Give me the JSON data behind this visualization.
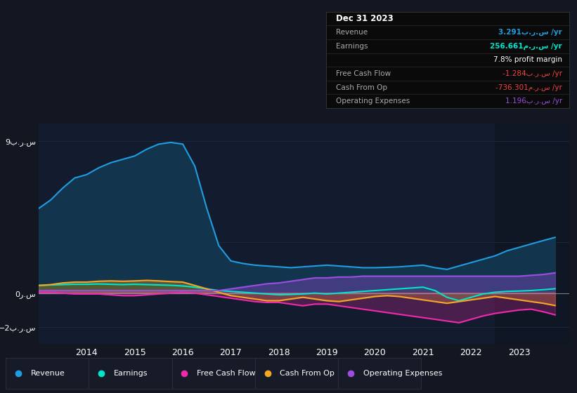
{
  "background_color": "#131722",
  "plot_bg_color": "#131c2e",
  "grid_color": "#1e2a3a",
  "zero_line_color": "#888888",
  "ylim": [
    -3.0,
    10.0
  ],
  "years": [
    2013.0,
    2013.25,
    2013.5,
    2013.75,
    2014.0,
    2014.25,
    2014.5,
    2014.75,
    2015.0,
    2015.25,
    2015.5,
    2015.75,
    2016.0,
    2016.25,
    2016.5,
    2016.75,
    2017.0,
    2017.25,
    2017.5,
    2017.75,
    2018.0,
    2018.25,
    2018.5,
    2018.75,
    2019.0,
    2019.25,
    2019.5,
    2019.75,
    2020.0,
    2020.25,
    2020.5,
    2020.75,
    2021.0,
    2021.25,
    2021.5,
    2021.75,
    2022.0,
    2022.25,
    2022.5,
    2022.75,
    2023.0,
    2023.25,
    2023.5,
    2023.75
  ],
  "revenue": [
    5.0,
    5.5,
    6.2,
    6.8,
    7.0,
    7.4,
    7.7,
    7.9,
    8.1,
    8.5,
    8.8,
    8.9,
    8.8,
    7.5,
    5.0,
    2.8,
    1.9,
    1.75,
    1.65,
    1.6,
    1.55,
    1.5,
    1.55,
    1.6,
    1.65,
    1.6,
    1.55,
    1.5,
    1.5,
    1.52,
    1.55,
    1.6,
    1.65,
    1.5,
    1.4,
    1.6,
    1.8,
    2.0,
    2.2,
    2.5,
    2.7,
    2.9,
    3.1,
    3.291
  ],
  "earnings": [
    0.45,
    0.48,
    0.5,
    0.52,
    0.52,
    0.54,
    0.52,
    0.5,
    0.52,
    0.5,
    0.48,
    0.46,
    0.42,
    0.35,
    0.25,
    0.15,
    0.1,
    0.05,
    0.0,
    -0.05,
    -0.1,
    -0.08,
    -0.05,
    0.0,
    -0.05,
    0.0,
    0.05,
    0.1,
    0.15,
    0.2,
    0.25,
    0.3,
    0.35,
    0.15,
    -0.25,
    -0.45,
    -0.25,
    -0.05,
    0.05,
    0.1,
    0.12,
    0.15,
    0.2,
    0.257
  ],
  "free_cash_flow": [
    0.05,
    0.05,
    0.0,
    -0.05,
    -0.05,
    -0.05,
    -0.1,
    -0.15,
    -0.15,
    -0.1,
    -0.05,
    0.0,
    0.05,
    0.0,
    -0.1,
    -0.2,
    -0.3,
    -0.4,
    -0.5,
    -0.55,
    -0.55,
    -0.65,
    -0.75,
    -0.65,
    -0.65,
    -0.75,
    -0.85,
    -0.95,
    -1.05,
    -1.15,
    -1.25,
    -1.35,
    -1.45,
    -1.55,
    -1.65,
    -1.75,
    -1.55,
    -1.35,
    -1.2,
    -1.1,
    -1.0,
    -0.95,
    -1.1,
    -1.284
  ],
  "cash_from_op": [
    0.45,
    0.5,
    0.6,
    0.65,
    0.65,
    0.7,
    0.72,
    0.7,
    0.72,
    0.75,
    0.72,
    0.68,
    0.65,
    0.45,
    0.25,
    0.05,
    -0.15,
    -0.25,
    -0.35,
    -0.45,
    -0.45,
    -0.35,
    -0.25,
    -0.35,
    -0.45,
    -0.5,
    -0.4,
    -0.3,
    -0.2,
    -0.15,
    -0.2,
    -0.3,
    -0.4,
    -0.5,
    -0.6,
    -0.5,
    -0.4,
    -0.3,
    -0.2,
    -0.3,
    -0.4,
    -0.5,
    -0.6,
    -0.736
  ],
  "operating_expenses": [
    0.15,
    0.15,
    0.15,
    0.15,
    0.15,
    0.15,
    0.15,
    0.15,
    0.15,
    0.15,
    0.15,
    0.15,
    0.15,
    0.15,
    0.15,
    0.15,
    0.25,
    0.35,
    0.45,
    0.55,
    0.6,
    0.7,
    0.8,
    0.9,
    0.9,
    0.95,
    0.95,
    1.0,
    1.0,
    1.0,
    1.0,
    1.0,
    1.0,
    1.0,
    1.0,
    1.0,
    1.0,
    1.0,
    1.0,
    1.0,
    1.0,
    1.05,
    1.1,
    1.196
  ],
  "revenue_color": "#1f9de0",
  "earnings_color": "#00e5cc",
  "free_cash_flow_color": "#ee2aaa",
  "cash_from_op_color": "#f5a623",
  "operating_expenses_color": "#9b4de0",
  "revenue_fill": "#12344d",
  "earnings_fill": "#0d3d35",
  "x_tick_years": [
    2014,
    2015,
    2016,
    2017,
    2018,
    2019,
    2020,
    2021,
    2022,
    2023
  ],
  "legend_items": [
    {
      "label": "Revenue",
      "color": "#1f9de0"
    },
    {
      "label": "Earnings",
      "color": "#00e5cc"
    },
    {
      "label": "Free Cash Flow",
      "color": "#ee2aaa"
    },
    {
      "label": "Cash From Op",
      "color": "#f5a623"
    },
    {
      "label": "Operating Expenses",
      "color": "#9b4de0"
    }
  ],
  "info_rows": [
    {
      "label": "Revenue",
      "value": "3.291ب.ر.س /yr",
      "color": "#1f9de0"
    },
    {
      "label": "Earnings",
      "value": "256.661م.ر.س /yr",
      "color": "#00e5cc"
    },
    {
      "label": "",
      "value": "7.8% profit margin",
      "color": "#ffffff"
    },
    {
      "label": "Free Cash Flow",
      "value": "-1.284ب.ر.س /yr",
      "color": "#ee4444"
    },
    {
      "label": "Cash From Op",
      "value": "-736.301م.ر.س /yr",
      "color": "#ee4444"
    },
    {
      "label": "Operating Expenses",
      "value": "1.196ب.ر.س /yr",
      "color": "#9b4de0"
    }
  ]
}
